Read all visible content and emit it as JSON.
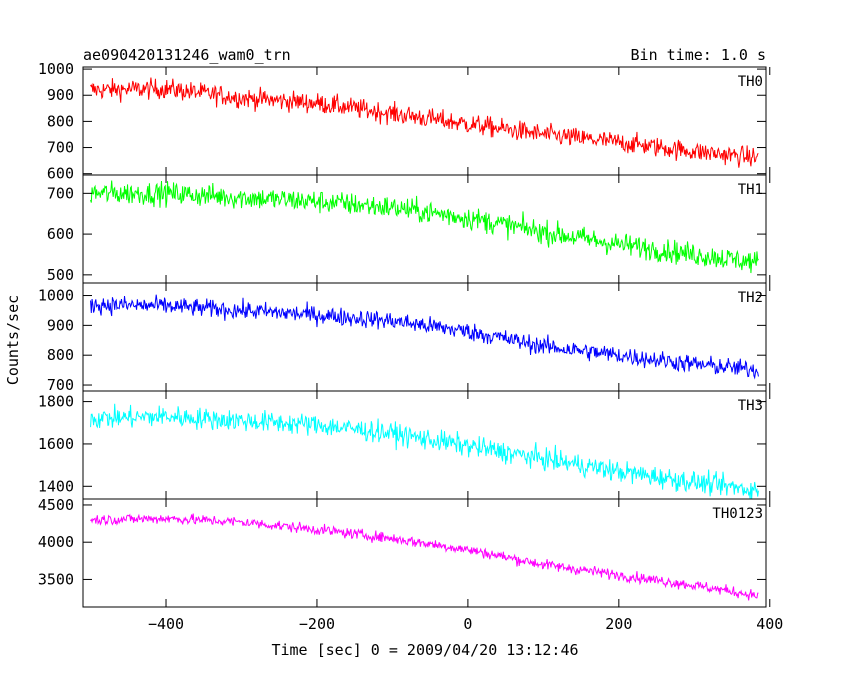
{
  "header": {
    "title": "ae090420131246_wam0_trn",
    "bin_time": "Bin time: 1.0 s"
  },
  "chart_data": {
    "type": "line",
    "title": "ae090420131246_wam0_trn",
    "subtitle": "Bin time: 1.0 s",
    "xlabel": "Time [sec] 0 = 2009/04/20 13:12:46",
    "ylabel": "Counts/sec",
    "xlim": [
      -510,
      395
    ],
    "xticks": [
      -400,
      -200,
      0,
      200,
      400
    ],
    "xtick_labels": [
      "−400",
      "−200",
      "0",
      "200",
      "400"
    ],
    "grid": false,
    "panels": [
      {
        "name": "TH0",
        "color": "#ff0000",
        "ylim": [
          595,
          1008
        ],
        "yticks": [
          600,
          700,
          800,
          900,
          1000
        ],
        "trend": [
          [
            -500,
            920
          ],
          [
            -400,
            925
          ],
          [
            -300,
            890
          ],
          [
            -200,
            870
          ],
          [
            -100,
            830
          ],
          [
            0,
            790
          ],
          [
            100,
            750
          ],
          [
            200,
            720
          ],
          [
            300,
            685
          ],
          [
            385,
            660
          ]
        ],
        "noise_amp": 38
      },
      {
        "name": "TH1",
        "color": "#00ff00",
        "ylim": [
          480,
          745
        ],
        "yticks": [
          500,
          600,
          700
        ],
        "trend": [
          [
            -500,
            700
          ],
          [
            -400,
            700
          ],
          [
            -300,
            690
          ],
          [
            -200,
            680
          ],
          [
            -100,
            665
          ],
          [
            0,
            640
          ],
          [
            100,
            605
          ],
          [
            200,
            575
          ],
          [
            300,
            550
          ],
          [
            385,
            530
          ]
        ],
        "noise_amp": 28
      },
      {
        "name": "TH2",
        "color": "#0000ff",
        "ylim": [
          680,
          1042
        ],
        "yticks": [
          700,
          800,
          900,
          1000
        ],
        "trend": [
          [
            -500,
            970
          ],
          [
            -400,
            965
          ],
          [
            -300,
            950
          ],
          [
            -200,
            935
          ],
          [
            -100,
            915
          ],
          [
            0,
            880
          ],
          [
            100,
            830
          ],
          [
            200,
            800
          ],
          [
            300,
            770
          ],
          [
            385,
            750
          ]
        ],
        "noise_amp": 30
      },
      {
        "name": "TH3",
        "color": "#00ffff",
        "ylim": [
          1340,
          1850
        ],
        "yticks": [
          1400,
          1600,
          1800
        ],
        "trend": [
          [
            -500,
            1720
          ],
          [
            -400,
            1730
          ],
          [
            -300,
            1710
          ],
          [
            -200,
            1690
          ],
          [
            -100,
            1650
          ],
          [
            0,
            1590
          ],
          [
            100,
            1530
          ],
          [
            200,
            1470
          ],
          [
            300,
            1420
          ],
          [
            385,
            1380
          ]
        ],
        "noise_amp": 50
      },
      {
        "name": "TH0123",
        "color": "#ff00ff",
        "ylim": [
          3130,
          4580
        ],
        "yticks": [
          3500,
          4000,
          4500
        ],
        "trend": [
          [
            -500,
            4300
          ],
          [
            -400,
            4320
          ],
          [
            -300,
            4270
          ],
          [
            -200,
            4170
          ],
          [
            -100,
            4050
          ],
          [
            0,
            3900
          ],
          [
            100,
            3700
          ],
          [
            200,
            3560
          ],
          [
            300,
            3420
          ],
          [
            385,
            3280
          ]
        ],
        "noise_amp": 70
      }
    ]
  }
}
